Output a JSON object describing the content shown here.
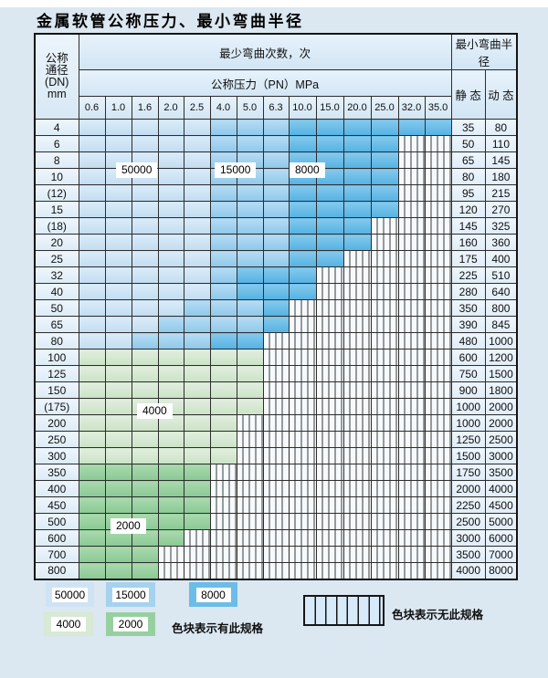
{
  "title": "金属软管公称压力、最小弯曲半径",
  "table": {
    "corner": [
      "公称",
      "通径",
      "(DN)",
      "mm"
    ],
    "bend_header": "最少弯曲次数，次",
    "pressure_header": "公称压力（PN）MPa",
    "radius_header": "最小弯曲半径",
    "static_label": "静 态",
    "dynamic_label": "动 态",
    "pressures": [
      "0.6",
      "1.0",
      "1.6",
      "2.0",
      "2.5",
      "4.0",
      "5.0",
      "6.3",
      "10.0",
      "15.0",
      "20.0",
      "25.0",
      "32.0",
      "35.0"
    ],
    "cell_colors": {
      "L": "#cfe3f4",
      "M": "#a5d2ef",
      "D": "#6bbde8",
      "G": "#d8e9d4",
      "E": "#97d0a0",
      "X": "striped-no-spec"
    },
    "rows": [
      {
        "dn": "4",
        "cells": "LLLLLMMMDDDDDD",
        "static": "35",
        "dynamic": "80"
      },
      {
        "dn": "6",
        "cells": "LLLLLMMMDDDDXX",
        "static": "50",
        "dynamic": "110"
      },
      {
        "dn": "8",
        "cells": "LLLLLMMMDDDDXX",
        "static": "65",
        "dynamic": "145"
      },
      {
        "dn": "10",
        "cells": "LLLLLMMMDDDDXX",
        "static": "80",
        "dynamic": "180"
      },
      {
        "dn": "(12)",
        "cells": "LLLLLMMMDDDDXX",
        "static": "95",
        "dynamic": "215"
      },
      {
        "dn": "15",
        "cells": "LLLLLMMMDDDDXX",
        "static": "120",
        "dynamic": "270"
      },
      {
        "dn": "(18)",
        "cells": "LLLLLMMMDDDXXX",
        "static": "145",
        "dynamic": "325"
      },
      {
        "dn": "20",
        "cells": "LLLLLMMMDDDXXX",
        "static": "160",
        "dynamic": "360"
      },
      {
        "dn": "25",
        "cells": "LLLLLMMMDDXXXX",
        "static": "175",
        "dynamic": "400"
      },
      {
        "dn": "32",
        "cells": "LLLLLMDDDXXXXX",
        "static": "225",
        "dynamic": "510"
      },
      {
        "dn": "40",
        "cells": "LLLLLMDDDXXXXX",
        "static": "280",
        "dynamic": "640"
      },
      {
        "dn": "50",
        "cells": "LLLLMMMDXXXXXX",
        "static": "350",
        "dynamic": "800"
      },
      {
        "dn": "65",
        "cells": "LLLMMMMDXXXXXX",
        "static": "390",
        "dynamic": "845"
      },
      {
        "dn": "80",
        "cells": "LLMMMDDXXXXXXX",
        "static": "480",
        "dynamic": "1000"
      },
      {
        "dn": "100",
        "cells": "GGGGGGGXXXXXXX",
        "static": "600",
        "dynamic": "1200"
      },
      {
        "dn": "125",
        "cells": "GGGGGGGXXXXXXX",
        "static": "750",
        "dynamic": "1500"
      },
      {
        "dn": "150",
        "cells": "GGGGGGGXXXXXXX",
        "static": "900",
        "dynamic": "1800"
      },
      {
        "dn": "(175)",
        "cells": "GGGGGGGXXXXXXX",
        "static": "1000",
        "dynamic": "2000"
      },
      {
        "dn": "200",
        "cells": "GGGGGGXXXXXXXX",
        "static": "1000",
        "dynamic": "2000"
      },
      {
        "dn": "250",
        "cells": "GGGGGGXXXXXXXX",
        "static": "1250",
        "dynamic": "2500"
      },
      {
        "dn": "300",
        "cells": "GGGGGGXXXXXXXX",
        "static": "1500",
        "dynamic": "3000"
      },
      {
        "dn": "350",
        "cells": "EEEEEXXXXXXXXX",
        "static": "1750",
        "dynamic": "3500"
      },
      {
        "dn": "400",
        "cells": "EEEEEXXXXXXXXX",
        "static": "2000",
        "dynamic": "4000"
      },
      {
        "dn": "450",
        "cells": "EEEEEXXXXXXXXX",
        "static": "2250",
        "dynamic": "4500"
      },
      {
        "dn": "500",
        "cells": "EEEEEXXXXXXXXX",
        "static": "2500",
        "dynamic": "5000"
      },
      {
        "dn": "600",
        "cells": "EEEEXXXXXXXXXX",
        "static": "3000",
        "dynamic": "6000"
      },
      {
        "dn": "700",
        "cells": "EEEXXXXXXXXXXX",
        "static": "3500",
        "dynamic": "7000"
      },
      {
        "dn": "800",
        "cells": "EEEXXXXXXXXXXX",
        "static": "4000",
        "dynamic": "8000"
      }
    ]
  },
  "region_labels": [
    "50000",
    "15000",
    "8000",
    "4000",
    "2000"
  ],
  "legend": {
    "swatches": [
      {
        "value": "50000",
        "type": "L"
      },
      {
        "value": "15000",
        "type": "M"
      },
      {
        "value": "8000",
        "type": "D"
      },
      {
        "value": "4000",
        "type": "G"
      },
      {
        "value": "2000",
        "type": "E"
      }
    ],
    "has_spec_note": "色块表示有此规格",
    "no_spec_note": "色块表示无此规格"
  }
}
